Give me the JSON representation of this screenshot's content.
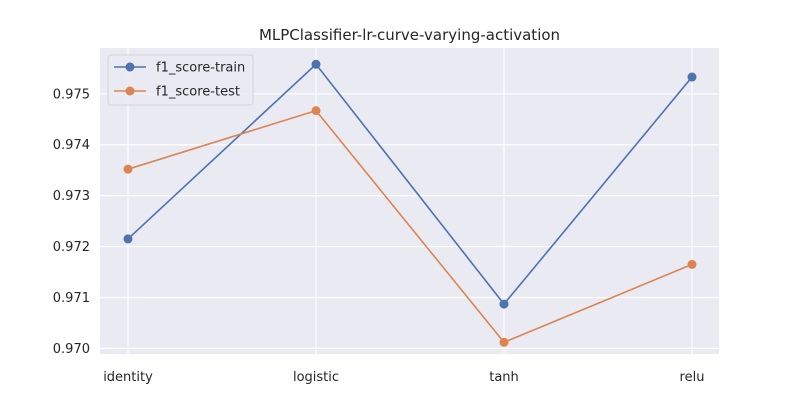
{
  "chart_data": {
    "type": "line",
    "title": "MLPClassifier-lr-curve-varying-activation",
    "xlabel": "",
    "ylabel": "",
    "categories": [
      "identity",
      "logistic",
      "tanh",
      "relu"
    ],
    "ylim": [
      0.96989,
      0.9759
    ],
    "yticks": [
      0.97,
      0.971,
      0.972,
      0.973,
      0.974,
      0.975
    ],
    "ytick_labels": [
      "0.970",
      "0.971",
      "0.972",
      "0.973",
      "0.974",
      "0.975"
    ],
    "grid": true,
    "legend_position": "top-left",
    "background_color": "#eaeaf2",
    "series": [
      {
        "name": "f1_score-train",
        "color": "#4c72b0",
        "values": [
          0.97215,
          0.97558,
          0.97087,
          0.97533
        ]
      },
      {
        "name": "f1_score-test",
        "color": "#dd8452",
        "values": [
          0.97352,
          0.97467,
          0.97012,
          0.97165
        ]
      }
    ]
  }
}
